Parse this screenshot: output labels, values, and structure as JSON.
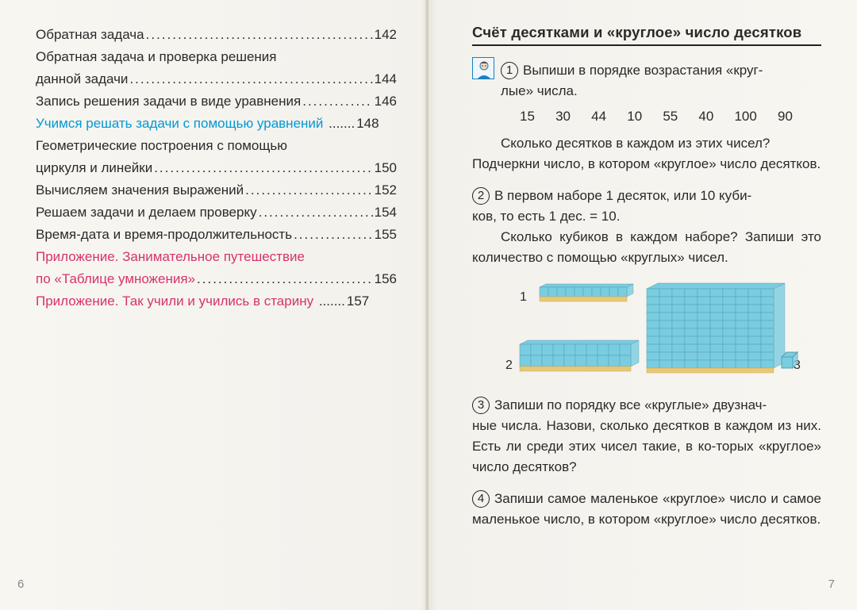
{
  "left_page": {
    "toc": [
      {
        "text": "Обратная задача",
        "page": "142",
        "color": "default",
        "wrap": false
      },
      {
        "text1": "Обратная задача и проверка решения",
        "text2": "данной задачи",
        "page": "144",
        "color": "default",
        "wrap": true
      },
      {
        "text": "Запись решения задачи в виде уравнения",
        "page": "146",
        "color": "default",
        "wrap": false
      },
      {
        "text": "Учимся решать задачи с помощью уравнений",
        "page": "148",
        "color": "blue",
        "wrap": false,
        "short_dots": true
      },
      {
        "text1": "Геометрические построения с помощью",
        "text2": "циркуля и линейки",
        "page": "150",
        "color": "default",
        "wrap": true
      },
      {
        "text": "Вычисляем значения выражений",
        "page": "152",
        "color": "default",
        "wrap": false
      },
      {
        "text": "Решаем задачи и делаем проверку",
        "page": "154",
        "color": "default",
        "wrap": false
      },
      {
        "text": "Время-дата и время-продолжительность",
        "page": "155",
        "color": "default",
        "wrap": false
      },
      {
        "text1": "Приложение. Занимательное путешествие",
        "text2": "по «Таблице умножения»",
        "page": "156",
        "color": "magenta",
        "wrap": true
      },
      {
        "text": "Приложение. Так учили и учились в старину",
        "page": "157",
        "color": "magenta",
        "wrap": false,
        "short_dots": true
      }
    ],
    "page_number": "6"
  },
  "right_page": {
    "heading": "Счёт десятками и «круглое» число десятков",
    "task1": {
      "num": "1",
      "line1": "Выпиши в порядке возрастания «круг-",
      "line2": "лые» числа.",
      "numbers": [
        "15",
        "30",
        "44",
        "10",
        "55",
        "40",
        "100",
        "90"
      ],
      "q1": "Сколько десятков в каждом из этих чисел?",
      "q2": "Подчеркни число, в котором «круглое» число десятков."
    },
    "task2": {
      "num": "2",
      "line1": "В первом наборе 1 десяток, или 10 куби-",
      "line2": "ков, то есть 1 дес. = 10.",
      "q1": "Сколько кубиков в каждом наборе? Запиши это количество с помощью «круглых» чисел.",
      "labels": {
        "l1": "1",
        "l2": "2",
        "l3": "3"
      },
      "cube_colors": {
        "fill": "#79cde0",
        "stroke": "#5a9bb0",
        "edge": "#d6a84a",
        "label_fill": "#e8c878"
      }
    },
    "task3": {
      "num": "3",
      "text": "Запиши по порядку все «круглые» двузнач-",
      "text2": "ные числа. Назови, сколько десятков в каждом из них. Есть ли среди этих чисел такие, в ко-торых «круглое» число десятков?"
    },
    "task4": {
      "num": "4",
      "text": "Запиши самое маленькое «круглое» число и самое маленькое число, в котором «круглое» число десятков."
    },
    "page_number": "7"
  }
}
